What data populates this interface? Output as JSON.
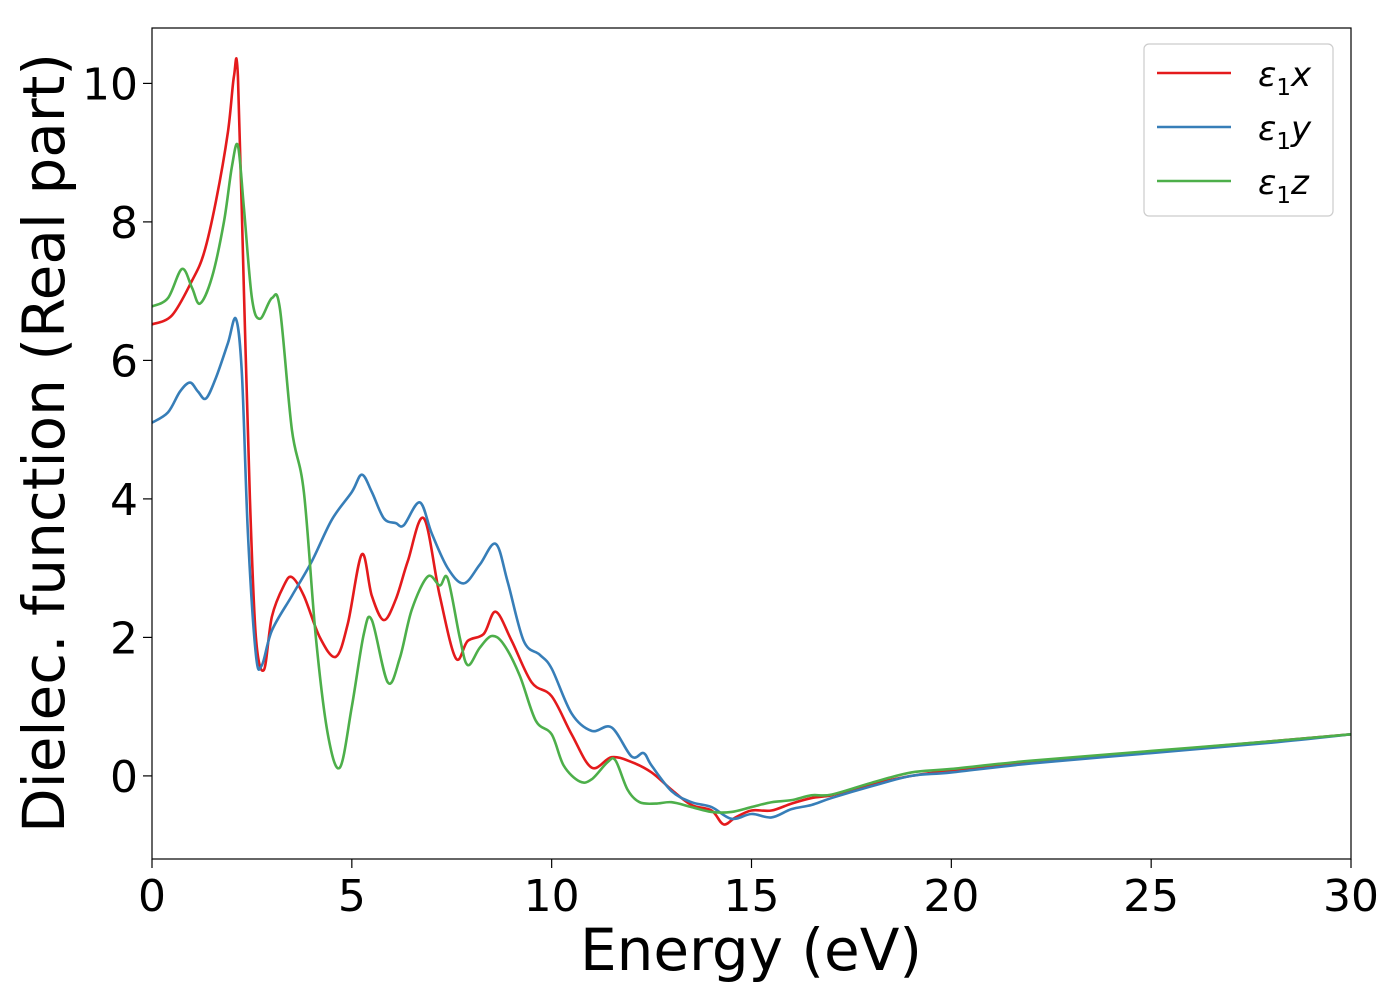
{
  "chart_data": {
    "type": "line",
    "title": "",
    "xlabel": "Energy (eV)",
    "ylabel": "Dielec. function (Real part)",
    "xlim": [
      0,
      30
    ],
    "ylim": [
      -1.2,
      10.8
    ],
    "xticks": [
      0,
      5,
      10,
      15,
      20,
      25,
      30
    ],
    "yticks": [
      0,
      2,
      4,
      6,
      8,
      10
    ],
    "grid": false,
    "legend_position": "top-right",
    "series": [
      {
        "name": "ε1x",
        "legend_main": "ε",
        "legend_sub": "1",
        "legend_var": "x",
        "color": "#e41a1c",
        "points": [
          [
            0,
            6.52
          ],
          [
            0.5,
            6.65
          ],
          [
            1.0,
            7.15
          ],
          [
            1.3,
            7.55
          ],
          [
            1.6,
            8.3
          ],
          [
            1.9,
            9.3
          ],
          [
            2.05,
            10.1
          ],
          [
            2.15,
            10.1
          ],
          [
            2.3,
            7.0
          ],
          [
            2.45,
            4.0
          ],
          [
            2.6,
            2.0
          ],
          [
            2.8,
            1.53
          ],
          [
            3.0,
            2.3
          ],
          [
            3.3,
            2.75
          ],
          [
            3.5,
            2.87
          ],
          [
            3.8,
            2.6
          ],
          [
            4.2,
            2.0
          ],
          [
            4.6,
            1.72
          ],
          [
            4.9,
            2.2
          ],
          [
            5.25,
            3.2
          ],
          [
            5.5,
            2.6
          ],
          [
            5.8,
            2.25
          ],
          [
            6.1,
            2.55
          ],
          [
            6.4,
            3.1
          ],
          [
            6.8,
            3.72
          ],
          [
            7.2,
            2.6
          ],
          [
            7.6,
            1.7
          ],
          [
            7.9,
            1.95
          ],
          [
            8.3,
            2.05
          ],
          [
            8.6,
            2.37
          ],
          [
            9.0,
            1.95
          ],
          [
            9.5,
            1.35
          ],
          [
            10.0,
            1.15
          ],
          [
            10.5,
            0.6
          ],
          [
            11.0,
            0.12
          ],
          [
            11.5,
            0.27
          ],
          [
            12.0,
            0.2
          ],
          [
            12.5,
            0.05
          ],
          [
            13.0,
            -0.2
          ],
          [
            13.5,
            -0.42
          ],
          [
            14.0,
            -0.5
          ],
          [
            14.3,
            -0.7
          ],
          [
            14.6,
            -0.6
          ],
          [
            15.0,
            -0.5
          ],
          [
            15.5,
            -0.5
          ],
          [
            16.0,
            -0.4
          ],
          [
            16.5,
            -0.32
          ],
          [
            17.0,
            -0.28
          ],
          [
            17.5,
            -0.2
          ],
          [
            18.0,
            -0.12
          ],
          [
            19.0,
            0.0
          ],
          [
            20.0,
            0.08
          ],
          [
            22.0,
            0.2
          ],
          [
            25.0,
            0.35
          ],
          [
            28.0,
            0.5
          ],
          [
            30.0,
            0.6
          ]
        ]
      },
      {
        "name": "ε1y",
        "legend_main": "ε",
        "legend_sub": "1",
        "legend_var": "y",
        "color": "#377eb8",
        "points": [
          [
            0,
            5.1
          ],
          [
            0.4,
            5.25
          ],
          [
            0.7,
            5.55
          ],
          [
            0.95,
            5.68
          ],
          [
            1.15,
            5.55
          ],
          [
            1.35,
            5.45
          ],
          [
            1.6,
            5.75
          ],
          [
            1.9,
            6.25
          ],
          [
            2.1,
            6.6
          ],
          [
            2.25,
            5.8
          ],
          [
            2.4,
            3.5
          ],
          [
            2.6,
            1.75
          ],
          [
            2.75,
            1.6
          ],
          [
            3.0,
            2.1
          ],
          [
            3.5,
            2.6
          ],
          [
            4.0,
            3.1
          ],
          [
            4.5,
            3.7
          ],
          [
            5.0,
            4.1
          ],
          [
            5.25,
            4.35
          ],
          [
            5.5,
            4.1
          ],
          [
            5.8,
            3.72
          ],
          [
            6.1,
            3.65
          ],
          [
            6.3,
            3.62
          ],
          [
            6.7,
            3.95
          ],
          [
            7.0,
            3.5
          ],
          [
            7.4,
            3.0
          ],
          [
            7.8,
            2.78
          ],
          [
            8.2,
            3.05
          ],
          [
            8.6,
            3.35
          ],
          [
            8.9,
            2.8
          ],
          [
            9.3,
            1.95
          ],
          [
            9.7,
            1.75
          ],
          [
            10.0,
            1.55
          ],
          [
            10.5,
            0.9
          ],
          [
            11.0,
            0.65
          ],
          [
            11.5,
            0.7
          ],
          [
            12.0,
            0.28
          ],
          [
            12.3,
            0.33
          ],
          [
            12.5,
            0.15
          ],
          [
            13.0,
            -0.22
          ],
          [
            13.5,
            -0.38
          ],
          [
            14.0,
            -0.45
          ],
          [
            14.5,
            -0.62
          ],
          [
            15.0,
            -0.55
          ],
          [
            15.5,
            -0.6
          ],
          [
            16.0,
            -0.48
          ],
          [
            16.5,
            -0.42
          ],
          [
            17.0,
            -0.32
          ],
          [
            18.0,
            -0.15
          ],
          [
            19.0,
            0.0
          ],
          [
            20.0,
            0.05
          ],
          [
            22.0,
            0.18
          ],
          [
            25.0,
            0.33
          ],
          [
            28.0,
            0.48
          ],
          [
            30.0,
            0.6
          ]
        ]
      },
      {
        "name": "ε1z",
        "legend_main": "ε",
        "legend_sub": "1",
        "legend_var": "z",
        "color": "#4daf4a",
        "points": [
          [
            0,
            6.78
          ],
          [
            0.4,
            6.9
          ],
          [
            0.75,
            7.32
          ],
          [
            1.0,
            7.05
          ],
          [
            1.2,
            6.82
          ],
          [
            1.5,
            7.2
          ],
          [
            1.8,
            8.0
          ],
          [
            2.0,
            8.8
          ],
          [
            2.15,
            9.1
          ],
          [
            2.3,
            8.2
          ],
          [
            2.5,
            6.9
          ],
          [
            2.7,
            6.6
          ],
          [
            3.0,
            6.9
          ],
          [
            3.2,
            6.75
          ],
          [
            3.5,
            5.0
          ],
          [
            3.8,
            4.1
          ],
          [
            4.1,
            2.0
          ],
          [
            4.4,
            0.6
          ],
          [
            4.7,
            0.12
          ],
          [
            5.0,
            1.0
          ],
          [
            5.3,
            2.05
          ],
          [
            5.5,
            2.25
          ],
          [
            5.9,
            1.35
          ],
          [
            6.2,
            1.7
          ],
          [
            6.5,
            2.4
          ],
          [
            6.9,
            2.88
          ],
          [
            7.2,
            2.75
          ],
          [
            7.4,
            2.85
          ],
          [
            7.7,
            2.0
          ],
          [
            7.9,
            1.6
          ],
          [
            8.2,
            1.85
          ],
          [
            8.5,
            2.02
          ],
          [
            8.8,
            1.9
          ],
          [
            9.2,
            1.45
          ],
          [
            9.6,
            0.8
          ],
          [
            10.0,
            0.6
          ],
          [
            10.3,
            0.15
          ],
          [
            10.7,
            -0.08
          ],
          [
            11.0,
            -0.05
          ],
          [
            11.4,
            0.2
          ],
          [
            11.6,
            0.22
          ],
          [
            11.9,
            -0.2
          ],
          [
            12.2,
            -0.38
          ],
          [
            12.6,
            -0.4
          ],
          [
            13.0,
            -0.38
          ],
          [
            13.5,
            -0.45
          ],
          [
            14.0,
            -0.52
          ],
          [
            14.5,
            -0.52
          ],
          [
            15.0,
            -0.45
          ],
          [
            15.5,
            -0.38
          ],
          [
            16.0,
            -0.35
          ],
          [
            16.5,
            -0.28
          ],
          [
            17.0,
            -0.27
          ],
          [
            18.0,
            -0.1
          ],
          [
            19.0,
            0.05
          ],
          [
            20.0,
            0.1
          ],
          [
            22.0,
            0.22
          ],
          [
            25.0,
            0.36
          ],
          [
            28.0,
            0.5
          ],
          [
            30.0,
            0.6
          ]
        ]
      }
    ]
  }
}
